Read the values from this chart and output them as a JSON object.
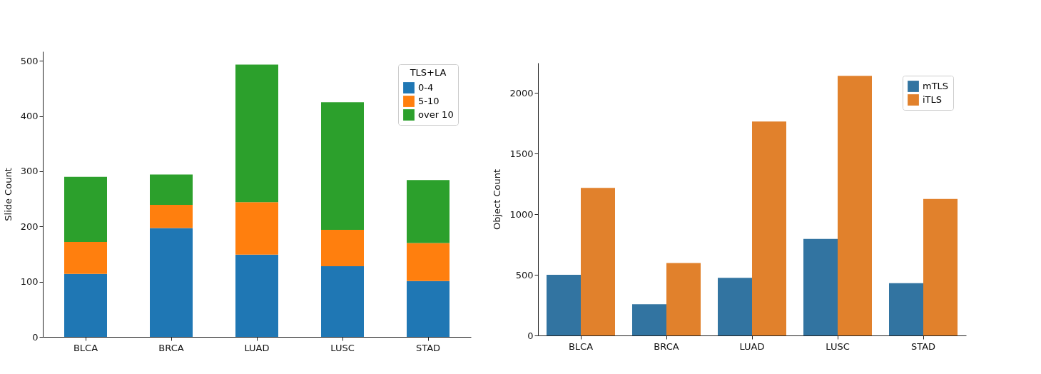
{
  "chart_data": [
    {
      "type": "bar",
      "stacked": true,
      "ylabel": "Slide Count",
      "legend_title": "TLS+LA",
      "legend": "top right",
      "categories": [
        "BLCA",
        "BRCA",
        "LUAD",
        "LUSC",
        "STAD"
      ],
      "ylim": [
        0,
        517
      ],
      "yticks": [
        0,
        100,
        200,
        300,
        400,
        500
      ],
      "series": [
        {
          "name": "0-4",
          "color": "#1f77b4",
          "values": [
            114,
            197,
            149,
            128,
            101
          ]
        },
        {
          "name": "5-10",
          "color": "#ff7f0e",
          "values": [
            58,
            42,
            95,
            66,
            69
          ]
        },
        {
          "name": "over 10",
          "color": "#2ca02c",
          "values": [
            118,
            55,
            249,
            231,
            114
          ]
        }
      ]
    },
    {
      "type": "bar",
      "ylabel": "Object Count",
      "legend": "top right",
      "categories": [
        "BLCA",
        "BRCA",
        "LUAD",
        "LUSC",
        "STAD"
      ],
      "ylim": [
        0,
        2250
      ],
      "yticks": [
        0,
        500,
        1000,
        1500,
        2000
      ],
      "series": [
        {
          "name": "mTLS",
          "color": "#3274a1",
          "values": [
            500,
            258,
            475,
            797,
            432
          ]
        },
        {
          "name": "iTLS",
          "color": "#e1812c",
          "values": [
            1218,
            598,
            1765,
            2143,
            1126
          ]
        }
      ]
    }
  ]
}
